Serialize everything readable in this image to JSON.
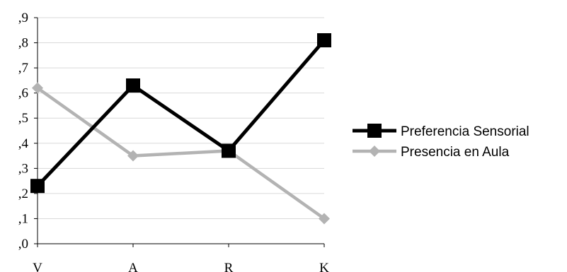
{
  "chart_data": {
    "type": "line",
    "categories": [
      "V",
      "A",
      "R",
      "K"
    ],
    "y_tick_labels": [
      ",0",
      ",1",
      ",2",
      ",3",
      ",4",
      ",5",
      ",6",
      ",7",
      ",8",
      ",9"
    ],
    "ylim": [
      0,
      0.9
    ],
    "grid": true,
    "legend_position": "right",
    "series": [
      {
        "name": "Preferencia Sensorial",
        "values": [
          0.23,
          0.63,
          0.37,
          0.81
        ],
        "color": "#000000",
        "marker": "square"
      },
      {
        "name": "Presencia en Aula",
        "values": [
          0.62,
          0.35,
          0.37,
          0.1
        ],
        "color": "#b3b3b3",
        "marker": "diamond"
      }
    ]
  }
}
